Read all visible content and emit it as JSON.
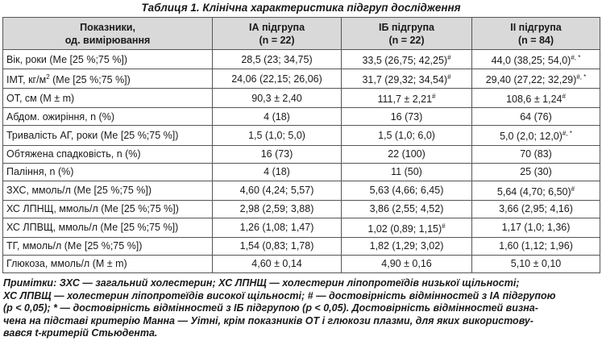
{
  "title": "Таблиця 1. Клінічна характеристика підгруп дослідження",
  "table": {
    "headers": [
      "Показники,\nод. вимірювання",
      "ІА підгрупа\n(n = 22)",
      "ІБ підгрупа\n(n = 22)",
      "ІІ підгрупа\n(n = 84)"
    ],
    "rows": [
      [
        "Вік, роки (Ме [25 %;75 %])",
        "28,5 (23; 34,75)",
        "33,5 (26,75; 42,25)#",
        "44,0 (38,25; 54,0)#, *"
      ],
      [
        "ІМТ, кг/м² (Ме [25 %;75 %])",
        "24,06 (22,15; 26,06)",
        "31,7 (29,32; 34,54)#",
        "29,40 (27,22; 32,29)#, *"
      ],
      [
        "ОТ, см (M ± m)",
        "90,3 ± 2,40",
        "111,7 ± 2,21#",
        "108,6 ± 1,24#"
      ],
      [
        "Абдом. ожиріння, n (%)",
        "4 (18)",
        "16 (73)",
        "64 (76)"
      ],
      [
        "Тривалість АГ, роки  (Ме [25 %;75 %])",
        "1,5 (1,0; 5,0)",
        "1,5 (1,0; 6,0)",
        "5,0 (2,0; 12,0)#, *"
      ],
      [
        "Обтяжена спадковість, n (%)",
        "16 (73)",
        "22 (100)",
        "70 (83)"
      ],
      [
        "Паління, n (%)",
        "4 (18)",
        "11 (50)",
        "25 (30)"
      ],
      [
        "ЗХС, ммоль/л (Ме [25 %;75 %])",
        "4,60 (4,24; 5,57)",
        "5,63 (4,66; 6,45)",
        "5,64 (4,70; 6,50)#"
      ],
      [
        "ХС ЛПНЩ, ммоль/л (Ме [25 %;75 %])",
        "2,98 (2,59; 3,88)",
        "3,86 (2,55; 4,52)",
        "3,66 (2,95; 4,16)"
      ],
      [
        "ХС ЛПВЩ, ммоль/л (Ме [25 %;75 %])",
        "1,26 (1,08; 1,47)",
        "1,02 (0,89; 1,15)#",
        "1,17 (1,0; 1,36)"
      ],
      [
        "ТГ, ммоль/л (Ме [25 %;75 %])",
        "1,54 (0,83; 1,78)",
        "1,82 (1,29; 3,02)",
        "1,60 (1,12; 1,96)"
      ],
      [
        "Глюкоза, ммоль/л (M ± m)",
        "4,60 ± 0,14",
        "4,90 ± 0,16",
        "5,10 ± 0,10"
      ]
    ]
  },
  "notes": "Примітки: ЗХС — загальний холестерин; ХС ЛПНЩ — холестерин ліпопротеїдів низької щільності;\nХС ЛПВЩ — холестерин ліпопротеїдів високої щільності; # — достовірність відмінностей з ІА підгрупою\n(p < 0,05); * — достовірність відмінностей з ІБ підгрупою (p < 0,05). Достовірність відмінностей визна-\nчена на підставі критерію Манна — Уітні, крім показників ОТ і глюкози плазми, для яких використову-\nвався t-критерій Стьюдента."
}
